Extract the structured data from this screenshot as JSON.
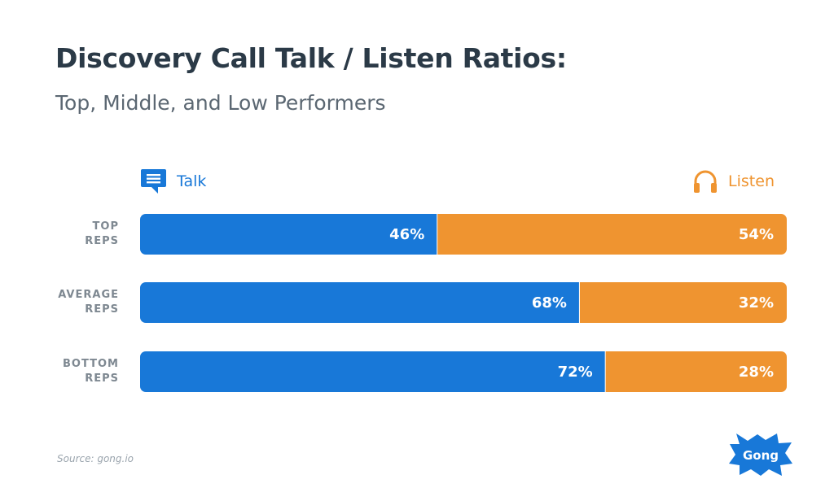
{
  "title": "Discovery Call Talk / Listen Ratios:",
  "subtitle": "Top, Middle, and Low Performers",
  "legend": {
    "talk": "Talk",
    "listen": "Listen",
    "talk_icon": "chat-bubble-icon",
    "listen_icon": "headphones-icon"
  },
  "colors": {
    "talk": "#1878d8",
    "listen": "#ef9430",
    "label": "#7e8891"
  },
  "source": "Source: gong.io",
  "logo": {
    "text": "Gong",
    "color": "#1878d8"
  },
  "chart_data": {
    "type": "bar",
    "orientation": "horizontal",
    "stacked": true,
    "title": "Discovery Call Talk / Listen Ratios:",
    "subtitle": "Top, Middle, and Low Performers",
    "categories": [
      [
        "TOP",
        "REPS"
      ],
      [
        "AVERAGE",
        "REPS"
      ],
      [
        "BOTTOM",
        "REPS"
      ]
    ],
    "series": [
      {
        "name": "Talk",
        "values": [
          46,
          68,
          72
        ],
        "labels": [
          "46%",
          "68%",
          "72%"
        ],
        "color": "#1878d8"
      },
      {
        "name": "Listen",
        "values": [
          54,
          32,
          28
        ],
        "labels": [
          "54%",
          "32%",
          "28%"
        ],
        "color": "#ef9430"
      }
    ],
    "xlim": [
      0,
      100
    ],
    "grid": false,
    "legend_position": "top"
  }
}
